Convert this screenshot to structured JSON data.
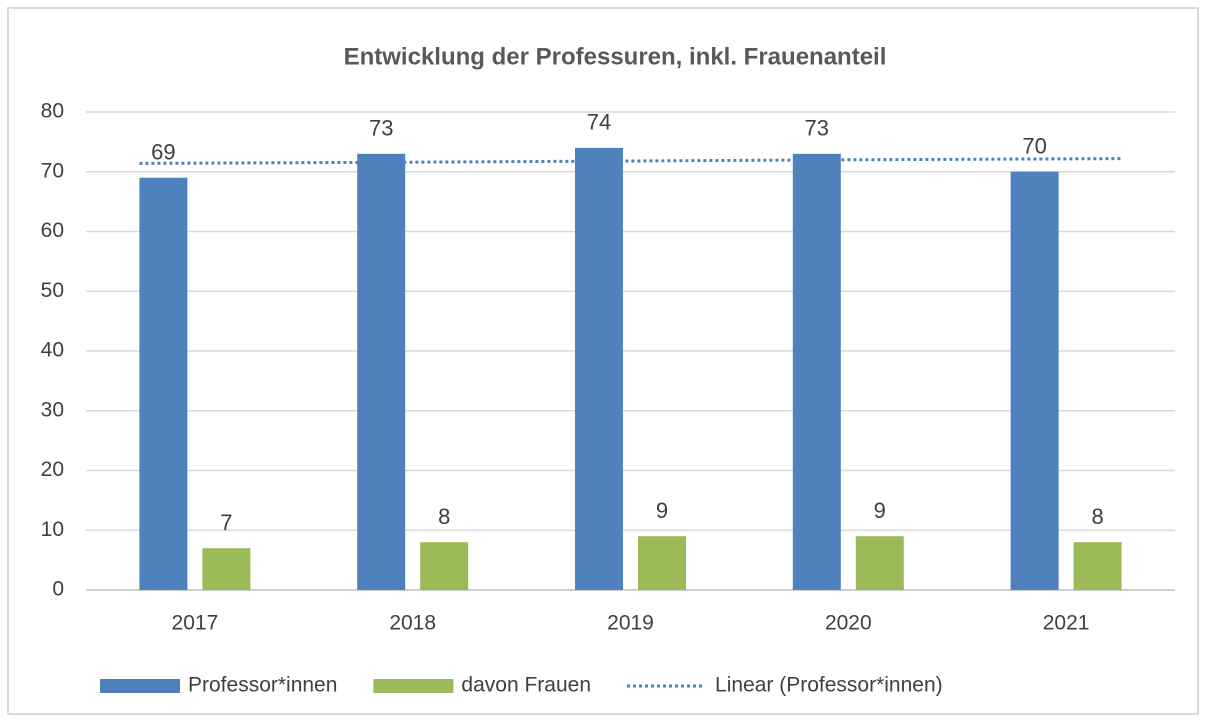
{
  "chart_data": {
    "type": "bar",
    "title": "Entwicklung der Professuren, inkl. Frauenanteil",
    "categories": [
      "2017",
      "2018",
      "2019",
      "2020",
      "2021"
    ],
    "series": [
      {
        "name": "Professor*innen",
        "color": "#4f81bd",
        "values": [
          69,
          73,
          74,
          73,
          70
        ]
      },
      {
        "name": "davon Frauen",
        "color": "#9bbb59",
        "values": [
          7,
          8,
          9,
          9,
          8
        ]
      },
      {
        "name": "Linear (Professor*innen)",
        "color": "#4f81bd",
        "type": "line",
        "style": "dotted",
        "values": [
          71.4,
          71.6,
          71.8,
          72.0,
          72.2
        ]
      }
    ],
    "ylim": [
      0,
      80
    ],
    "yticks": [
      0,
      10,
      20,
      30,
      40,
      50,
      60,
      70,
      80
    ],
    "grid": true,
    "legend": "bottom"
  }
}
